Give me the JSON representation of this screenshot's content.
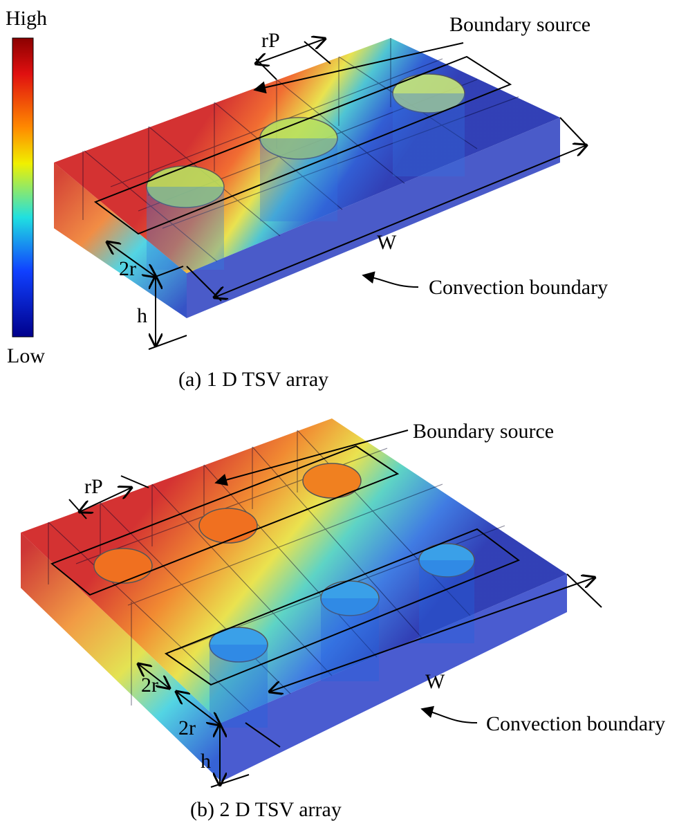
{
  "colorbar": {
    "high": "High",
    "low": "Low"
  },
  "panels": [
    {
      "boundary_label": "Boundary source",
      "pitch_label": "rP",
      "width_label": "W",
      "radius_labels": [
        "2r"
      ],
      "height_label": "h",
      "convection_label": "Convection boundary",
      "caption": "(a) 1 D TSV array"
    },
    {
      "boundary_label": "Boundary source",
      "pitch_label": "rP",
      "width_label": "W",
      "radius_labels": [
        "2r",
        "2r"
      ],
      "height_label": "h",
      "convection_label": "Convection boundary",
      "caption": "(b) 2 D TSV array"
    }
  ]
}
